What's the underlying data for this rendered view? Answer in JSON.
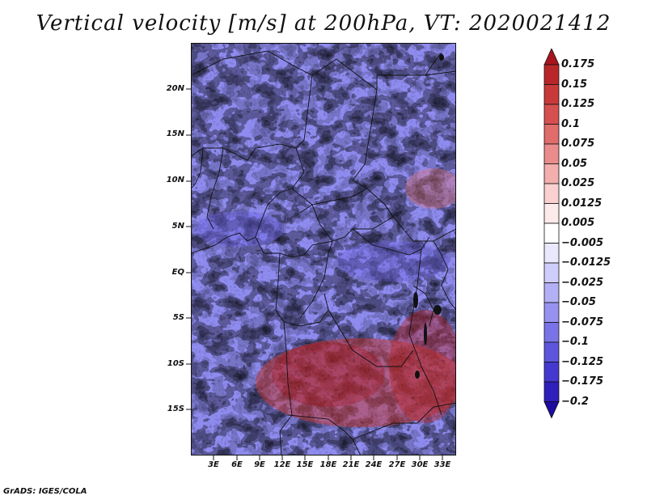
{
  "title": "Vertical velocity [m/s] at 200hPa, VT: 2020021412",
  "credit": "GrADS: IGES/COLA",
  "map": {
    "variable": "Vertical velocity",
    "units": "m/s",
    "level": "200hPa",
    "valid_time": "2020021412",
    "lat_labels": [
      "20N",
      "15N",
      "10N",
      "5N",
      "EQ",
      "5S",
      "10S",
      "15S"
    ],
    "lon_labels": [
      "3E",
      "6E",
      "9E",
      "12E",
      "15E",
      "18E",
      "21E",
      "24E",
      "27E",
      "30E",
      "33E"
    ]
  },
  "colorbar": {
    "labels": [
      "0.175",
      "0.15",
      "0.125",
      "0.1",
      "0.075",
      "0.05",
      "0.025",
      "0.0125",
      "0.005",
      "−0.005",
      "−0.0125",
      "−0.025",
      "−0.05",
      "−0.075",
      "−0.1",
      "−0.125",
      "−0.175",
      "−0.2"
    ],
    "colors": [
      "#a8151c",
      "#b8262a",
      "#c83a3a",
      "#d65050",
      "#e06c6c",
      "#ea8c8c",
      "#f3aeae",
      "#fad0d0",
      "#fdeaea",
      "#ffffff",
      "#e9e8fd",
      "#cfcdfb",
      "#b3b0f6",
      "#9792f0",
      "#7a73e8",
      "#5e55dd",
      "#4438cf",
      "#2f1fbb",
      "#1e0b9f"
    ]
  }
}
